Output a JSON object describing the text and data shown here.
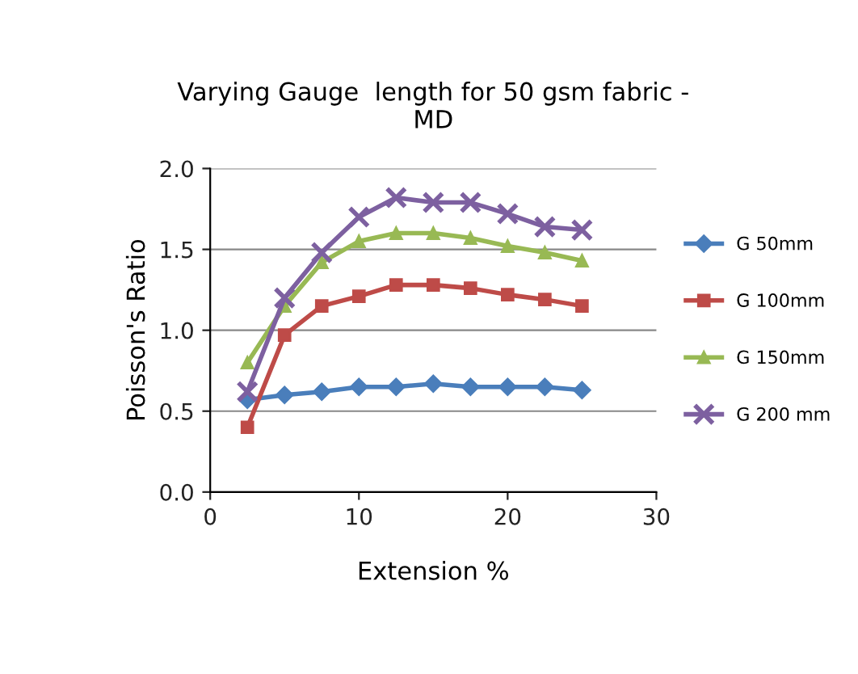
{
  "chart_data": {
    "type": "line",
    "title": "Varying Gauge  length for 50 gsm fabric -\nMD",
    "xlabel": "Extension %",
    "ylabel": "Poisson's Ratio",
    "x": [
      2.5,
      5,
      7.5,
      10,
      12.5,
      15,
      17.5,
      20,
      22.5,
      25
    ],
    "series": [
      {
        "name": "G 50mm",
        "color": "#4a7ebb",
        "marker": "diamond",
        "values": [
          0.57,
          0.6,
          0.62,
          0.65,
          0.65,
          0.67,
          0.65,
          0.65,
          0.65,
          0.63
        ]
      },
      {
        "name": "G 100mm",
        "color": "#be4b48",
        "marker": "square",
        "values": [
          0.4,
          0.97,
          1.15,
          1.21,
          1.28,
          1.28,
          1.26,
          1.22,
          1.19,
          1.15
        ]
      },
      {
        "name": "G 150mm",
        "color": "#98b954",
        "marker": "triangle",
        "values": [
          0.8,
          1.15,
          1.42,
          1.55,
          1.6,
          1.6,
          1.57,
          1.52,
          1.48,
          1.43
        ]
      },
      {
        "name": "G 200 mm",
        "color": "#7d60a0",
        "marker": "cross",
        "values": [
          0.62,
          1.2,
          1.48,
          1.7,
          1.82,
          1.79,
          1.79,
          1.72,
          1.64,
          1.62
        ]
      }
    ],
    "xlim": [
      0,
      30
    ],
    "xticks": [
      0,
      10,
      20,
      30
    ],
    "ylim": [
      0,
      2
    ],
    "yticks": [
      {
        "value": 0,
        "label": "0.0"
      },
      {
        "value": 0.5,
        "label": "0.5"
      },
      {
        "value": 1,
        "label": "1.0"
      },
      {
        "value": 1.5,
        "label": "1.5"
      },
      {
        "value": 2,
        "label": "2.0"
      }
    ],
    "grid": "y",
    "legend": "right"
  }
}
